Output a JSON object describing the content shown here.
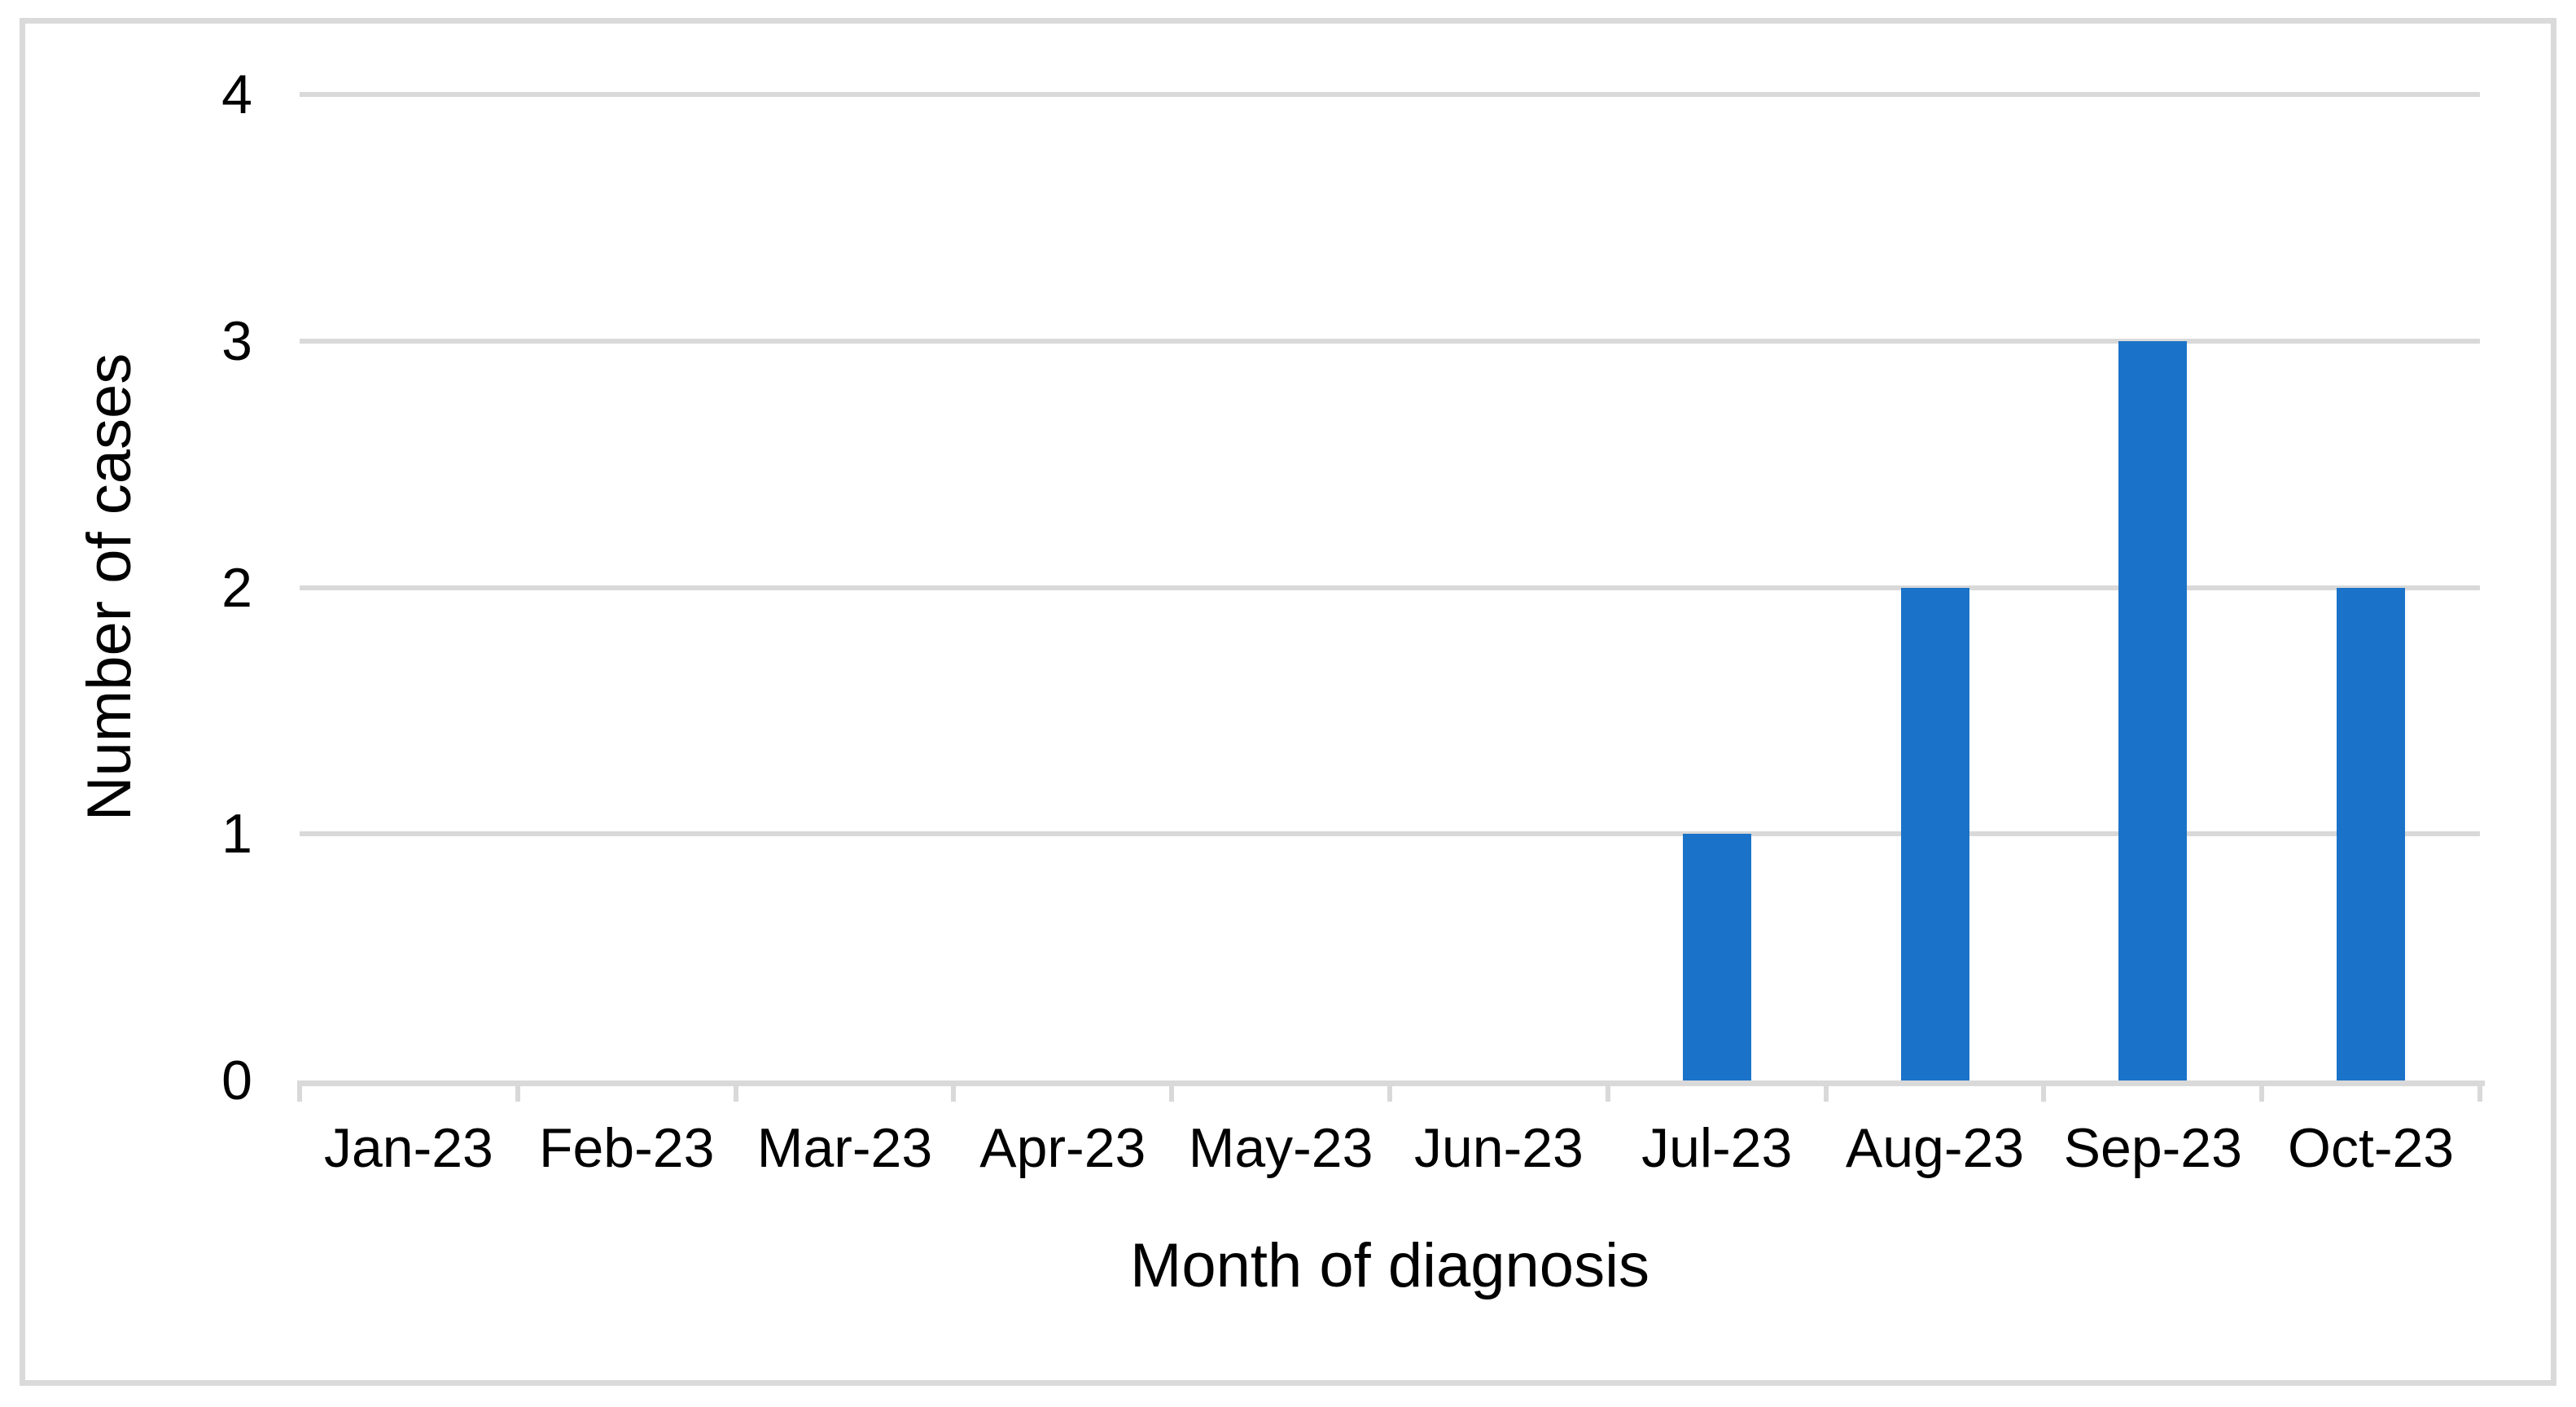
{
  "chart_data": {
    "type": "bar",
    "categories": [
      "Jan-23",
      "Feb-23",
      "Mar-23",
      "Apr-23",
      "May-23",
      "Jun-23",
      "Jul-23",
      "Aug-23",
      "Sep-23",
      "Oct-23"
    ],
    "values": [
      0,
      0,
      0,
      0,
      0,
      0,
      1,
      2,
      3,
      2
    ],
    "title": "",
    "xlabel": "Month of diagnosis",
    "ylabel": "Number of cases",
    "ylim": [
      0,
      4
    ],
    "yticks": [
      0,
      1,
      2,
      3,
      4
    ],
    "grid": "horizontal gridlines at 1,2,3,4",
    "legend": "none",
    "bar_color": "#1A73C8"
  },
  "colors": {
    "bar": "#1A73C8",
    "gridline": "#D9D9D9",
    "axis_line": "#D9D9D9",
    "frame_border": "#DADADA",
    "text": "#000000",
    "background": "#FFFFFF"
  }
}
